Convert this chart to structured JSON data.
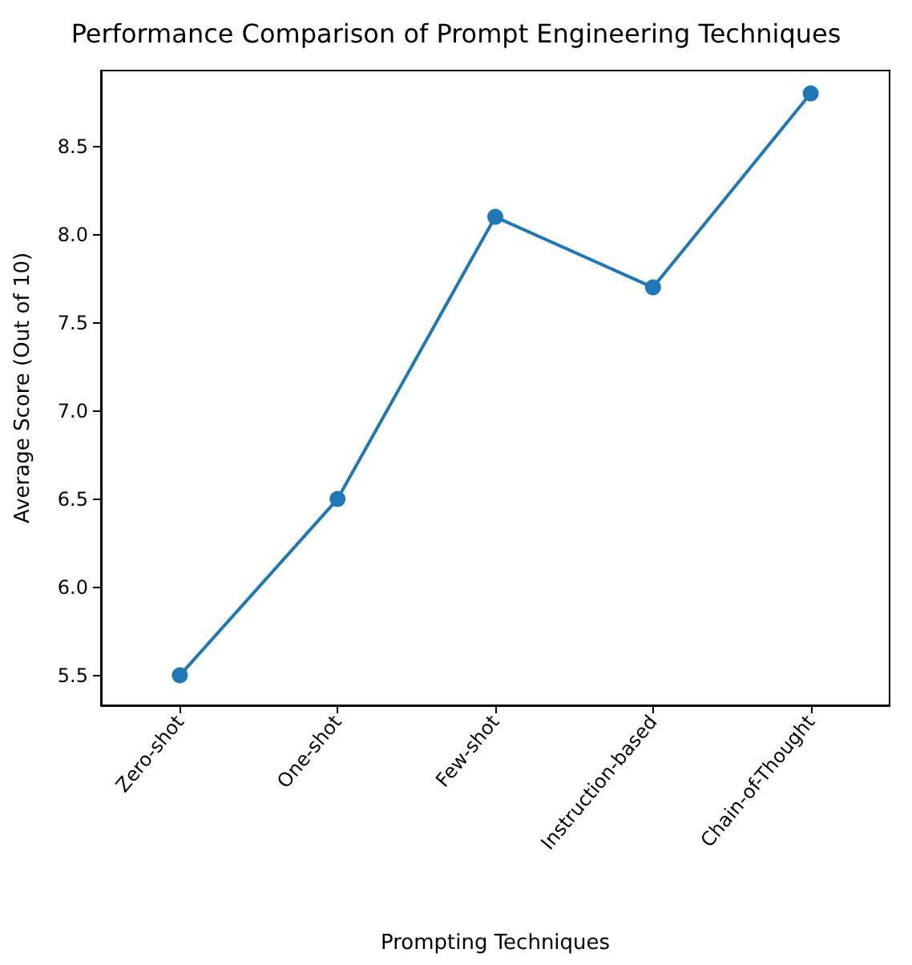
{
  "chart_data": {
    "type": "line",
    "title": "Performance Comparison of Prompt Engineering Techniques",
    "xlabel": "Prompting Techniques",
    "ylabel": "Average Score (Out of 10)",
    "categories": [
      "Zero-shot",
      "One-shot",
      "Few-shot",
      "Instruction-based",
      "Chain-of-Thought"
    ],
    "series": [
      {
        "color": "#1f77b4",
        "values": [
          5.5,
          6.5,
          8.1,
          7.7,
          8.8
        ]
      }
    ],
    "ylim": [
      5.33,
      8.93
    ],
    "yticks": [
      5.5,
      {
        "value": 6,
        "label": "6.0"
      },
      6.5,
      {
        "value": 7,
        "label": "7.0"
      },
      7.5,
      {
        "value": 8,
        "label": "8.0"
      },
      8.5
    ],
    "marker": "circle",
    "line_style": "solid",
    "grid": false
  }
}
